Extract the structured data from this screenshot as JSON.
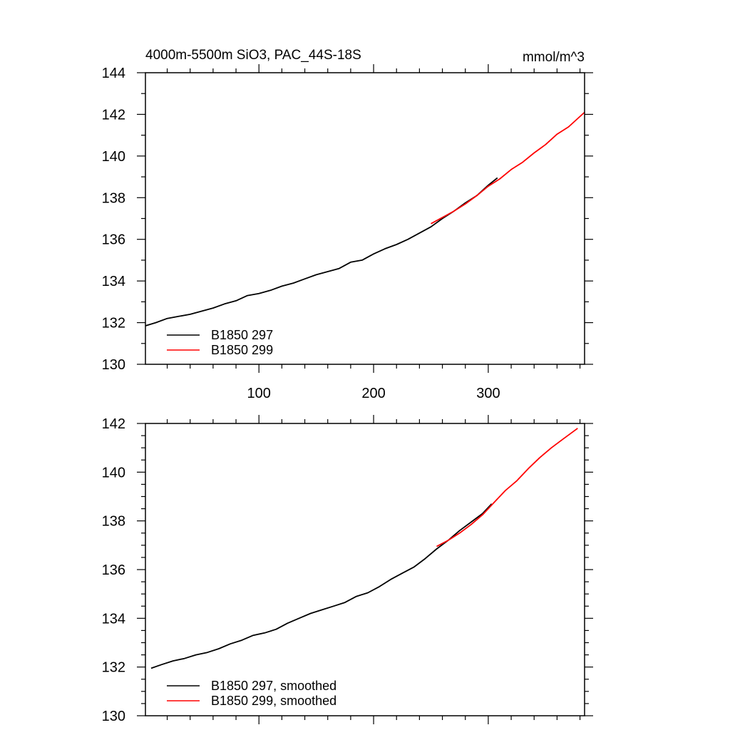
{
  "chart_data": [
    {
      "type": "line",
      "title": "4000m-5500m SiO3, PAC_44S-18S",
      "units": "mmol/m^3",
      "xlim": [
        1,
        384
      ],
      "ylim": [
        130,
        144
      ],
      "xticks": [
        100,
        200,
        300
      ],
      "yticks": [
        130,
        132,
        134,
        136,
        138,
        140,
        142,
        144
      ],
      "grid": false,
      "legend_position": "bottom-left",
      "series": [
        {
          "name": "B1850 297",
          "color": "#000000",
          "x": [
            1,
            10,
            20,
            30,
            40,
            50,
            60,
            70,
            80,
            90,
            100,
            110,
            120,
            130,
            140,
            150,
            160,
            170,
            180,
            190,
            200,
            210,
            220,
            230,
            240,
            250,
            260,
            270,
            280,
            290,
            300,
            308
          ],
          "y": [
            131.85,
            132.0,
            132.2,
            132.3,
            132.4,
            132.55,
            132.7,
            132.9,
            133.05,
            133.3,
            133.4,
            133.55,
            133.75,
            133.9,
            134.1,
            134.3,
            134.45,
            134.6,
            134.9,
            135.0,
            135.3,
            135.55,
            135.75,
            136.0,
            136.3,
            136.6,
            137.0,
            137.35,
            137.75,
            138.1,
            138.6,
            138.95
          ]
        },
        {
          "name": "B1850 299",
          "color": "#ff0000",
          "x": [
            250,
            260,
            270,
            280,
            290,
            300,
            310,
            320,
            330,
            340,
            350,
            360,
            370,
            384
          ],
          "y": [
            136.75,
            137.05,
            137.35,
            137.7,
            138.1,
            138.55,
            138.9,
            139.35,
            139.7,
            140.15,
            140.55,
            141.05,
            141.4,
            142.1
          ]
        }
      ]
    },
    {
      "type": "line",
      "xlim": [
        1,
        384
      ],
      "ylim": [
        130,
        142
      ],
      "xticks": [
        100,
        200,
        300
      ],
      "yticks": [
        130,
        132,
        134,
        136,
        138,
        140,
        142
      ],
      "grid": false,
      "legend_position": "bottom-left",
      "series": [
        {
          "name": "B1850 297, smoothed",
          "color": "#000000",
          "x": [
            6,
            15,
            25,
            35,
            45,
            55,
            65,
            75,
            85,
            95,
            105,
            115,
            125,
            135,
            145,
            155,
            165,
            175,
            185,
            195,
            205,
            215,
            225,
            235,
            245,
            255,
            265,
            275,
            285,
            295,
            303
          ],
          "y": [
            131.95,
            132.1,
            132.25,
            132.35,
            132.5,
            132.6,
            132.75,
            132.95,
            133.1,
            133.3,
            133.4,
            133.55,
            133.8,
            134.0,
            134.2,
            134.35,
            134.5,
            134.65,
            134.9,
            135.05,
            135.3,
            135.6,
            135.85,
            136.1,
            136.45,
            136.85,
            137.2,
            137.6,
            137.95,
            138.3,
            138.7
          ]
        },
        {
          "name": "B1850 299, smoothed",
          "color": "#ff0000",
          "x": [
            255,
            265,
            275,
            285,
            295,
            305,
            315,
            325,
            335,
            345,
            355,
            365,
            378
          ],
          "y": [
            136.95,
            137.2,
            137.5,
            137.85,
            138.25,
            138.75,
            139.25,
            139.65,
            140.15,
            140.6,
            141.0,
            141.35,
            141.8
          ]
        }
      ]
    }
  ]
}
